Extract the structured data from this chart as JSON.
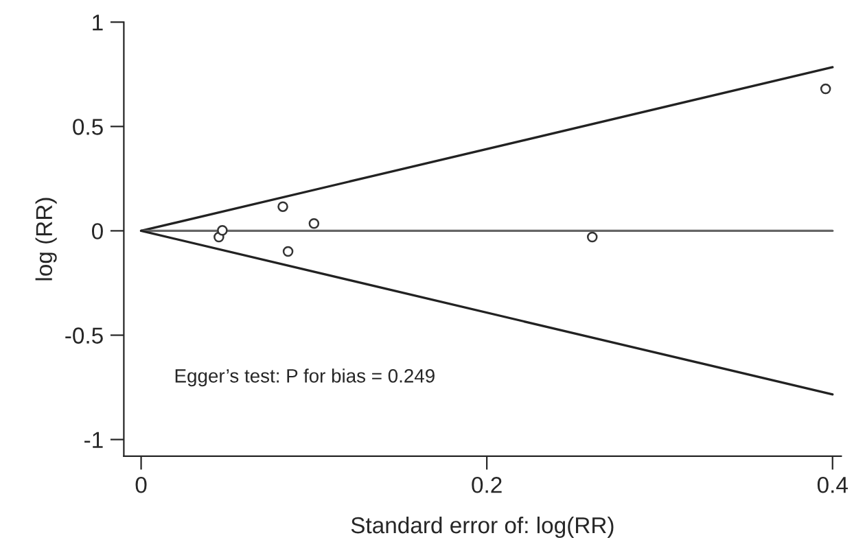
{
  "chart_data": {
    "type": "scatter",
    "xlabel": "Standard error of: log(RR)",
    "ylabel": "log (RR)",
    "xlim": [
      -0.01,
      0.405
    ],
    "ylim": [
      -1.08,
      1
    ],
    "xticks": [
      0,
      0.2,
      0.4
    ],
    "yticks": [
      -1,
      -0.5,
      0,
      0.5,
      1
    ],
    "grid": false,
    "legend": false,
    "series": [
      {
        "marker": "circle",
        "color": "#333333",
        "x": [
          0.045,
          0.047,
          0.082,
          0.085,
          0.1,
          0.261,
          0.396
        ],
        "values": [
          -0.03,
          0.002,
          0.116,
          -0.099,
          0.035,
          -0.03,
          0.68
        ]
      },
      {
        "type": "line",
        "color": "#222222",
        "x": [
          0,
          0.4
        ],
        "values": [
          0,
          0.784
        ]
      },
      {
        "type": "line",
        "color": "#666666",
        "x": [
          0,
          0.4
        ],
        "values": [
          0,
          0
        ]
      },
      {
        "type": "line",
        "color": "#222222",
        "x": [
          0,
          0.4
        ],
        "values": [
          0,
          -0.784
        ]
      }
    ],
    "annotations": [
      "Egger’s test: P for bias = 0.249"
    ]
  }
}
